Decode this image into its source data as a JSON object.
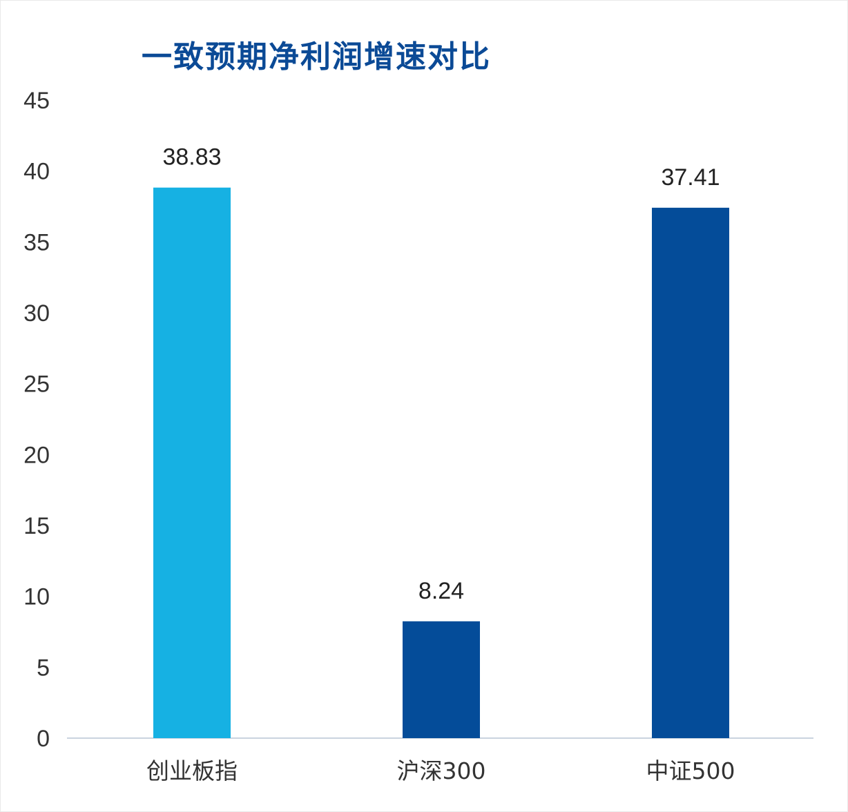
{
  "chart_data": {
    "type": "bar",
    "title": "一致预期净利润增速对比",
    "categories": [
      "创业板指",
      "沪深300",
      "中证500"
    ],
    "values": [
      38.83,
      8.24,
      37.41
    ],
    "data_labels": [
      "38.83",
      "8.24",
      "37.41"
    ],
    "bar_colors": [
      "#16b1e3",
      "#044c99",
      "#044c99"
    ],
    "ylim": [
      0,
      45
    ],
    "yticks": [
      0,
      5,
      10,
      15,
      20,
      25,
      30,
      35,
      40,
      45
    ],
    "ytick_labels": [
      "0",
      "5",
      "10",
      "15",
      "20",
      "25",
      "30",
      "35",
      "40",
      "45"
    ],
    "xlabel": "",
    "ylabel": "",
    "grid": false,
    "legend": "none"
  }
}
